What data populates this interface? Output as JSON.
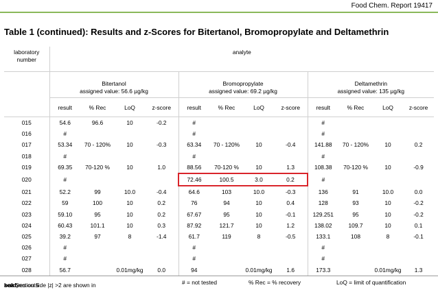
{
  "header": {
    "report_label": "Food Chem. Report 19417"
  },
  "title": "Table 1 (continued):  Results and z-Scores for Bitertanol, Bromopropylate and Deltamethrin",
  "table": {
    "lab_header_line1": "laboratory",
    "lab_header_line2": "number",
    "analyte_header": "analyte",
    "groups": [
      {
        "name": "Bitertanol",
        "assigned": "assigned value: 56.6 µg/kg"
      },
      {
        "name": "Bromopropylate",
        "assigned": "assigned value: 69.2 µg/kg"
      },
      {
        "name": "Deltamethrin",
        "assigned": "assigned value: 135 µg/kg"
      }
    ],
    "subheaders": [
      "result",
      "% Rec",
      "LoQ",
      "z-score"
    ],
    "rows": [
      {
        "lab": "015",
        "cells": [
          "54.6",
          "96.6",
          "10",
          "-0.2",
          "#",
          "",
          "",
          "",
          "#",
          "",
          "",
          ""
        ]
      },
      {
        "lab": "016",
        "cells": [
          "#",
          "",
          "",
          "",
          "#",
          "",
          "",
          "",
          "#",
          "",
          "",
          ""
        ]
      },
      {
        "lab": "017",
        "cells": [
          "53.34",
          "70 - 120%",
          "10",
          "-0.3",
          "63.34",
          "70 - 120%",
          "10",
          "-0.4",
          "141.88",
          "70 - 120%",
          "10",
          "0.2"
        ]
      },
      {
        "lab": "018",
        "cells": [
          "#",
          "",
          "",
          "",
          "#",
          "",
          "",
          "",
          "#",
          "",
          "",
          ""
        ]
      },
      {
        "lab": "019",
        "cells": [
          "69.35",
          "70-120 %",
          "10",
          "1.0",
          "88.56",
          "70-120 %",
          "10",
          "1.3",
          "108.38",
          "70-120 %",
          "10",
          "-0.9"
        ]
      },
      {
        "lab": "020",
        "cells": [
          "#",
          "",
          "",
          "",
          "72.46",
          "100.5",
          "3.0",
          "0.2",
          "#",
          "",
          "",
          ""
        ]
      },
      {
        "lab": "021",
        "cells": [
          "52.2",
          "99",
          "10.0",
          "-0.4",
          "64.6",
          "103",
          "10.0",
          "-0.3",
          "136",
          "91",
          "10.0",
          "0.0"
        ]
      },
      {
        "lab": "022",
        "cells": [
          "59",
          "100",
          "10",
          "0.2",
          "76",
          "94",
          "10",
          "0.4",
          "128",
          "93",
          "10",
          "-0.2"
        ]
      },
      {
        "lab": "023",
        "cells": [
          "59.10",
          "95",
          "10",
          "0.2",
          "67.67",
          "95",
          "10",
          "-0.1",
          "129.251",
          "95",
          "10",
          "-0.2"
        ]
      },
      {
        "lab": "024",
        "cells": [
          "60.43",
          "101.1",
          "10",
          "0.3",
          "87.92",
          "121.7",
          "10",
          "1.2",
          "138.02",
          "109.7",
          "10",
          "0.1"
        ]
      },
      {
        "lab": "025",
        "cells": [
          "39.2",
          "97",
          "8",
          "-1.4",
          "61.7",
          "119",
          "8",
          "-0.5",
          "133.1",
          "108",
          "8",
          "-0.1"
        ]
      },
      {
        "lab": "026",
        "cells": [
          "#",
          "",
          "",
          "",
          "#",
          "",
          "",
          "",
          "#",
          "",
          "",
          ""
        ]
      },
      {
        "lab": "027",
        "cells": [
          "#",
          "",
          "",
          "",
          "#",
          "",
          "",
          "",
          "#",
          "",
          "",
          ""
        ]
      },
      {
        "lab": "028",
        "cells": [
          "56.7",
          "",
          "0.01mg/kg",
          "0.0",
          "94",
          "",
          "0.01mg/kg",
          "1.6",
          "173.3",
          "",
          "0.01mg/kg",
          "1.3"
        ]
      }
    ],
    "highlighted_row": "020",
    "highlighted_group": "Bromopropylate"
  },
  "footer": {
    "note_prefix": "z-scores outside |z| >2 are shown in ",
    "note_bold": "bold,",
    "note_suffix": " see Section 5",
    "not_tested": "# = not tested",
    "rec": "% Rec = % recovery",
    "loq": "LoQ = limit of quantification"
  },
  "colors": {
    "header_rule": "#8ab85a",
    "highlight_box": "#d9242a"
  }
}
